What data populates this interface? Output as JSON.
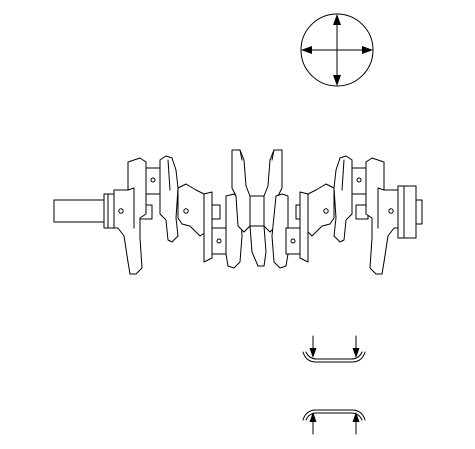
{
  "figure": {
    "subject": "crankshaft",
    "palette": {
      "line": "#000000",
      "background": "#ffffff"
    },
    "icons": {
      "gauge": "circle-with-cross-arrows-icon",
      "bearing_top": "bearing-shell-down-arrows-icon",
      "bearing_bottom": "bearing-shell-up-arrows-icon"
    }
  }
}
